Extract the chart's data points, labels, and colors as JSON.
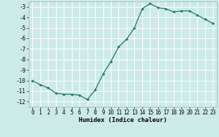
{
  "x": [
    0,
    1,
    2,
    3,
    4,
    5,
    6,
    7,
    8,
    9,
    10,
    11,
    12,
    13,
    14,
    15,
    16,
    17,
    18,
    19,
    20,
    21,
    22,
    23
  ],
  "y": [
    -10.0,
    -10.4,
    -10.7,
    -11.2,
    -11.3,
    -11.3,
    -11.4,
    -11.8,
    -10.9,
    -9.4,
    -8.2,
    -6.8,
    -6.1,
    -5.0,
    -3.2,
    -2.7,
    -3.1,
    -3.2,
    -3.5,
    -3.4,
    -3.4,
    -3.8,
    -4.2,
    -4.6
  ],
  "line_color": "#2e7d6e",
  "marker": "D",
  "marker_size": 1.8,
  "bg_color": "#cceae8",
  "grid_color": "#ffffff",
  "xlabel": "Humidex (Indice chaleur)",
  "ylim": [
    -12.5,
    -2.5
  ],
  "xlim": [
    -0.5,
    23.5
  ],
  "yticks": [
    -12,
    -11,
    -10,
    -9,
    -8,
    -7,
    -6,
    -5,
    -4,
    -3
  ],
  "xticks": [
    0,
    1,
    2,
    3,
    4,
    5,
    6,
    7,
    8,
    9,
    10,
    11,
    12,
    13,
    14,
    15,
    16,
    17,
    18,
    19,
    20,
    21,
    22,
    23
  ],
  "tick_fontsize": 5.5,
  "xlabel_fontsize": 6.5,
  "line_width": 1.0,
  "spine_color": "#aaaaaa"
}
